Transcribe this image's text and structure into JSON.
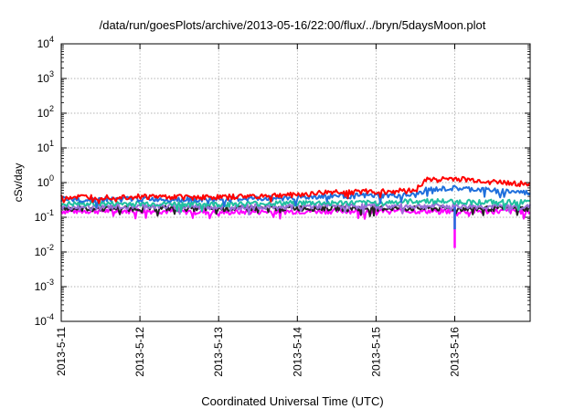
{
  "chart_data": {
    "type": "line",
    "title": "/data/run/goesPlots/archive/2013-05-16/22:00/flux/../bryn/5daysMoon.plot",
    "xlabel": "Coordinated Universal Time (UTC)",
    "ylabel": "cSv/day",
    "yscale": "log",
    "ylim": [
      0.0001,
      10000
    ],
    "yticks": [
      {
        "base": "10",
        "exp": "-4",
        "value": 0.0001
      },
      {
        "base": "10",
        "exp": "-3",
        "value": 0.001
      },
      {
        "base": "10",
        "exp": "-2",
        "value": 0.01
      },
      {
        "base": "10",
        "exp": "-1",
        "value": 0.1
      },
      {
        "base": "10",
        "exp": "0",
        "value": 1
      },
      {
        "base": "10",
        "exp": "1",
        "value": 10
      },
      {
        "base": "10",
        "exp": "2",
        "value": 100
      },
      {
        "base": "10",
        "exp": "3",
        "value": 1000
      },
      {
        "base": "10",
        "exp": "4",
        "value": 10000
      }
    ],
    "xlim": [
      "2013-05-11",
      "2013-05-16T23:00"
    ],
    "xticks": [
      "2013-5-11",
      "2013-5-12",
      "2013-5-13",
      "2013-5-14",
      "2013-5-15",
      "2013-5-16"
    ],
    "grid": true,
    "series": [
      {
        "color": "#ff0000",
        "x": [
          "2013-05-11",
          "2013-05-12",
          "2013-05-13",
          "2013-05-14",
          "2013-05-14T12:00",
          "2013-05-15",
          "2013-05-15T12:00",
          "2013-05-15T15:00",
          "2013-05-16",
          "2013-05-16T12:00",
          "2013-05-16T23:00"
        ],
        "values": [
          0.38,
          0.4,
          0.38,
          0.45,
          0.55,
          0.55,
          0.6,
          1.2,
          1.3,
          1.05,
          0.9
        ]
      },
      {
        "color": "#1f6fdc",
        "x": [
          "2013-05-11",
          "2013-05-12",
          "2013-05-13",
          "2013-05-14",
          "2013-05-14T12:00",
          "2013-05-15",
          "2013-05-15T12:00",
          "2013-05-15T15:00",
          "2013-05-16",
          "2013-05-16T12:00",
          "2013-05-16T23:00"
        ],
        "values": [
          0.32,
          0.34,
          0.33,
          0.37,
          0.42,
          0.42,
          0.43,
          0.62,
          0.68,
          0.6,
          0.5
        ]
      },
      {
        "color": "#20c0a0",
        "x": [
          "2013-05-11",
          "2013-05-12",
          "2013-05-13",
          "2013-05-14",
          "2013-05-15",
          "2013-05-15T15:00",
          "2013-05-16",
          "2013-05-16T23:00"
        ],
        "values": [
          0.24,
          0.25,
          0.24,
          0.26,
          0.26,
          0.3,
          0.28,
          0.27
        ]
      },
      {
        "color": "#9a6fd8",
        "x": [
          "2013-05-11",
          "2013-05-12",
          "2013-05-13",
          "2013-05-14",
          "2013-05-15",
          "2013-05-16",
          "2013-05-16T23:00"
        ],
        "values": [
          0.2,
          0.21,
          0.2,
          0.21,
          0.21,
          0.21,
          0.2
        ]
      },
      {
        "color": "#222222",
        "x": [
          "2013-05-11",
          "2013-05-12",
          "2013-05-13",
          "2013-05-14",
          "2013-05-15",
          "2013-05-16",
          "2013-05-16T23:00"
        ],
        "values": [
          0.18,
          0.185,
          0.18,
          0.185,
          0.185,
          0.18,
          0.18
        ]
      },
      {
        "color": "#ff00ff",
        "x": [
          "2013-05-11",
          "2013-05-12",
          "2013-05-13",
          "2013-05-14",
          "2013-05-15",
          "2013-05-16",
          "2013-05-16T23:00"
        ],
        "values": [
          0.15,
          0.155,
          0.14,
          0.15,
          0.155,
          0.15,
          0.15
        ]
      }
    ],
    "annotations": [
      {
        "color": "#ff00ff",
        "x": "2013-05-16",
        "min": 0.013,
        "note": "dip"
      },
      {
        "color": "#1f6fdc",
        "x": "2013-05-16",
        "min": 0.045,
        "note": "dip"
      }
    ]
  }
}
